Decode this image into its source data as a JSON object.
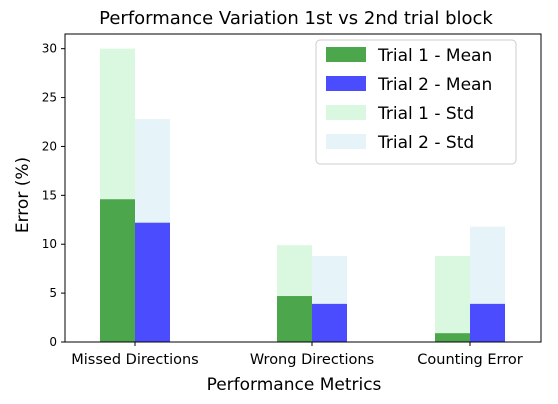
{
  "chart_data": {
    "type": "bar",
    "title": "Performance Variation 1st vs 2nd trial block",
    "xlabel": "Performance Metrics",
    "ylabel": "Error  (%)",
    "categories": [
      "Missed Directions",
      "Wrong Directions",
      "Counting Error"
    ],
    "ylim": [
      0,
      31.5
    ],
    "yticks": [
      0,
      5,
      10,
      15,
      20,
      25,
      30
    ],
    "grid": false,
    "legend_position": "top-right",
    "series": [
      {
        "name": "Trial 1 - Mean",
        "group": 0,
        "layer": "front",
        "color": "#4ca64c",
        "values": [
          14.6,
          4.7,
          0.9
        ]
      },
      {
        "name": "Trial 2 - Mean",
        "group": 1,
        "layer": "front",
        "color": "#4c4cff",
        "values": [
          12.2,
          3.9,
          3.9
        ]
      },
      {
        "name": "Trial 1 - Std",
        "group": 0,
        "layer": "back",
        "color": "#daf7e0",
        "values": [
          30.0,
          9.9,
          8.8
        ]
      },
      {
        "name": "Trial 2 - Std",
        "group": 1,
        "layer": "back",
        "color": "#e6f3f8",
        "values": [
          22.8,
          8.8,
          11.8
        ]
      }
    ],
    "legend_order": [
      0,
      1,
      2,
      3
    ]
  }
}
